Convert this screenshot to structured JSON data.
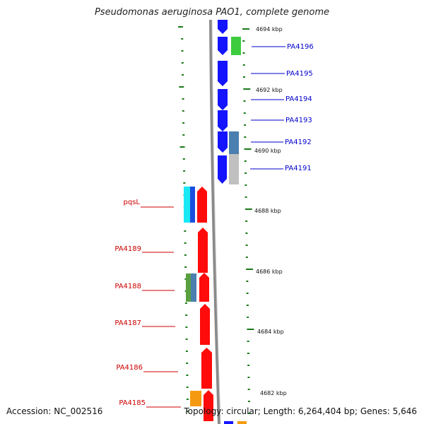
{
  "title": "Pseudomonas aeruginosa PAO1, complete genome",
  "accession": "Accession: NC_002516",
  "topology": "Topology: circular; Length: 6,264,404 bp; Genes: 5,646",
  "colors": {
    "backbone": "#8a8a8a",
    "tick": "#1a7a1a",
    "forward_gene": "#1414ff",
    "reverse_gene": "#ff0b0b",
    "right_label": "#0000cc",
    "left_label": "#cc0000"
  },
  "kbp_markers": [
    {
      "label": "4694 kbp"
    },
    {
      "label": "4692 kbp"
    },
    {
      "label": "4690 kbp"
    },
    {
      "label": "4688 kbp"
    },
    {
      "label": "4686 kbp"
    },
    {
      "label": "4684 kbp"
    },
    {
      "label": "4682 kbp"
    }
  ],
  "right_genes": [
    {
      "label": "PA4196"
    },
    {
      "label": "PA4195"
    },
    {
      "label": "PA4194"
    },
    {
      "label": "PA4193"
    },
    {
      "label": "PA4192"
    },
    {
      "label": "PA4191"
    }
  ],
  "left_genes": [
    {
      "label": "pqsL"
    },
    {
      "label": "PA4189"
    },
    {
      "label": "PA4188"
    },
    {
      "label": "PA4187"
    },
    {
      "label": "PA4186"
    },
    {
      "label": "PA4185"
    }
  ]
}
